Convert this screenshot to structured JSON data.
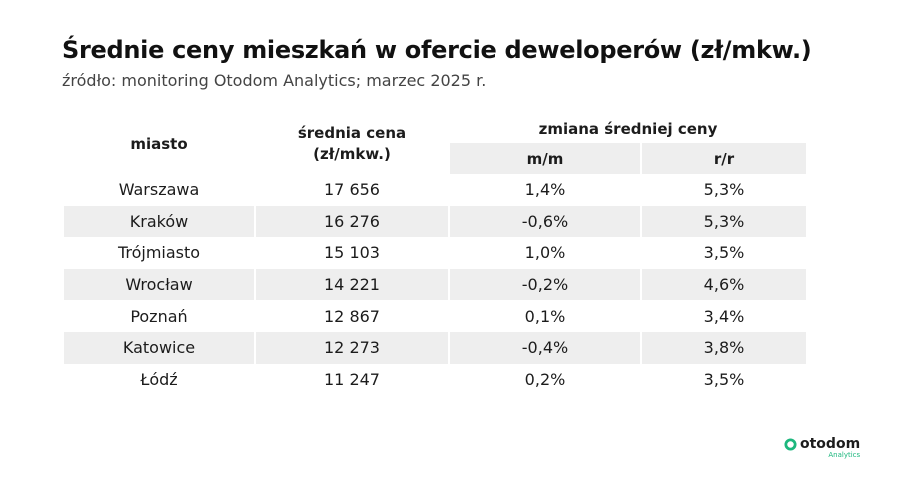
{
  "header": {
    "title": "Średnie ceny mieszkań w ofercie deweloperów (zł/mkw.)",
    "subtitle": "źródło: monitoring Otodom Analytics; marzec 2025 r."
  },
  "chart_data": {
    "type": "table",
    "title": "Średnie ceny mieszkań w ofercie deweloperów (zł/mkw.)",
    "subtitle": "źródło: monitoring Otodom Analytics; marzec 2025 r.",
    "columns": {
      "city": "miasto",
      "price_line1": "średnia cena",
      "price_line2": "(zł/mkw.)",
      "change_group": "zmiana średniej ceny",
      "mm": "m/m",
      "rr": "r/r"
    },
    "rows": [
      {
        "city": "Warszawa",
        "price": "17 656",
        "mm": "1,4%",
        "rr": "5,3%"
      },
      {
        "city": "Kraków",
        "price": "16 276",
        "mm": "-0,6%",
        "rr": "5,3%"
      },
      {
        "city": "Trójmiasto",
        "price": "15 103",
        "mm": "1,0%",
        "rr": "3,5%"
      },
      {
        "city": "Wrocław",
        "price": "14 221",
        "mm": "-0,2%",
        "rr": "4,6%"
      },
      {
        "city": "Poznań",
        "price": "12 867",
        "mm": "0,1%",
        "rr": "3,4%"
      },
      {
        "city": "Katowice",
        "price": "12 273",
        "mm": "-0,4%",
        "rr": "3,8%"
      },
      {
        "city": "Łódź",
        "price": "11 247",
        "mm": "0,2%",
        "rr": "3,5%"
      }
    ]
  },
  "logo": {
    "name": "otodom",
    "sub": "Analytics",
    "icon": "otodom-logo-icon",
    "colors": {
      "green": "#1db77e",
      "dark": "#1c1c1c"
    }
  },
  "colors": {
    "row_shade": "#eeeeee",
    "text": "#1c1c1c"
  }
}
